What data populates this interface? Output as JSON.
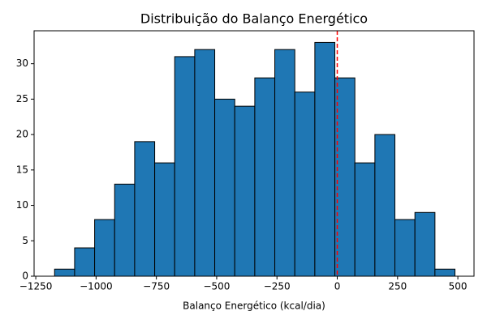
{
  "chart_data": {
    "type": "histogram",
    "title": "Distribuição do Balanço Energético",
    "x_label": "Balanço Energético (kcal/dia)",
    "bins": [
      -1172,
      -1089,
      -1006,
      -923,
      -840,
      -757,
      -674,
      -591,
      -508,
      -425,
      -342,
      -259,
      -176,
      -93,
      -10,
      73,
      156,
      239,
      322,
      405,
      488
    ],
    "values": [
      1,
      4,
      8,
      13,
      19,
      16,
      31,
      32,
      25,
      24,
      28,
      32,
      26,
      33,
      28,
      16,
      20,
      8,
      9,
      1
    ],
    "color": "#1f77b4",
    "edgecolor": "#000000",
    "vline": 0,
    "vline_color": "#ff0000",
    "xlim": [
      -1257,
      567
    ],
    "ylim": [
      0,
      34.65
    ],
    "xticks": [
      {
        "value": -1250,
        "label": "−1250"
      },
      {
        "value": -1000,
        "label": "−1000"
      },
      {
        "value": -750,
        "label": "−750"
      },
      {
        "value": -500,
        "label": "−500"
      },
      {
        "value": -250,
        "label": "−250"
      },
      0,
      250,
      500
    ],
    "yticks": [
      0,
      5,
      10,
      15,
      20,
      25,
      30
    ]
  }
}
